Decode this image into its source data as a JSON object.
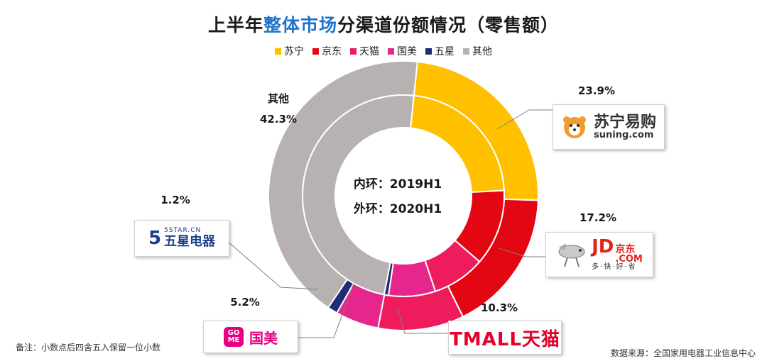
{
  "title": {
    "prefix": "上半年",
    "highlight": "整体市场",
    "suffix": "分渠道份额情况（零售额）",
    "highlight_color": "#1f73c9"
  },
  "legend": [
    {
      "label": "苏宁",
      "color": "#ffc000"
    },
    {
      "label": "京东",
      "color": "#e30613"
    },
    {
      "label": "天猫",
      "color": "#ee1c5c"
    },
    {
      "label": "国美",
      "color": "#e6258d"
    },
    {
      "label": "五星",
      "color": "#1e2c7a"
    },
    {
      "label": "其他",
      "color": "#b7b2b1"
    }
  ],
  "center": {
    "inner": "内环：2019H1",
    "outer": "外环：2020H1"
  },
  "callouts": {
    "other_name": "其他",
    "other": "42.3%",
    "suning": "23.9%",
    "jd": "17.2%",
    "tmall": "10.3%",
    "gome": "5.2%",
    "fivestar": "1.2%"
  },
  "logos": {
    "suning_cn": "苏宁易购",
    "suning_en": "suning.com",
    "jd_en": "JD",
    "jd_com": ".COM",
    "jd_cn": "京东",
    "jd_slogan": "多·快·好·省",
    "tmall": "TMALL天猫",
    "gome_badge_top": "GO",
    "gome_badge_bottom": "ME",
    "gome_cn": "国美",
    "fivestar_num": "5",
    "fivestar_en": "5STAR.CN",
    "fivestar_cn": "五星电器"
  },
  "note_left": "备注：小数点后四舍五入保留一位小数",
  "note_right": "数据来源：全国家用电器工业信息中心",
  "chart_data": {
    "type": "pie",
    "variant": "double-donut",
    "categories": [
      "苏宁",
      "京东",
      "天猫",
      "国美",
      "五星",
      "其他"
    ],
    "series": [
      {
        "name": "外环：2020H1",
        "values": [
          23.9,
          17.2,
          10.3,
          5.2,
          1.2,
          42.3
        ]
      },
      {
        "name": "内环：2019H1",
        "values": [
          22.5,
          12.2,
          8.5,
          7.5,
          0.7,
          48.6
        ]
      }
    ],
    "legend_position": "top"
  }
}
